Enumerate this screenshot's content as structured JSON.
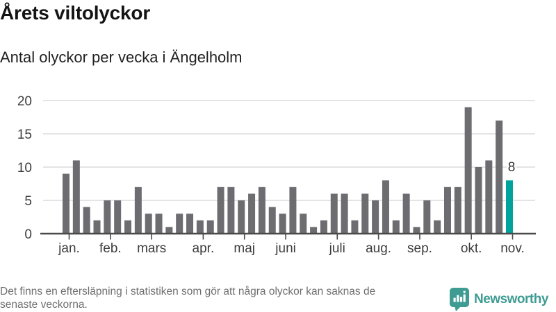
{
  "header": {
    "title": "Årets viltolyckor",
    "subtitle": "Antal olyckor per vecka i Ängelholm"
  },
  "chart_data": {
    "type": "bar",
    "title": "Årets viltolyckor",
    "subtitle": "Antal olyckor per vecka i Ängelholm",
    "x_unit": "vecka",
    "ylim": [
      0,
      20
    ],
    "yticks": [
      0,
      5,
      10,
      15,
      20
    ],
    "grid": true,
    "values": [
      9,
      11,
      4,
      2,
      5,
      5,
      2,
      7,
      3,
      3,
      1,
      3,
      3,
      2,
      2,
      7,
      7,
      5,
      6,
      7,
      4,
      3,
      7,
      3,
      1,
      2,
      6,
      6,
      2,
      6,
      5,
      8,
      2,
      6,
      1,
      5,
      2,
      7,
      7,
      19,
      10,
      11,
      17,
      8
    ],
    "months": [
      {
        "label": "jan.",
        "start_index": 0
      },
      {
        "label": "feb.",
        "start_index": 4
      },
      {
        "label": "mars",
        "start_index": 8
      },
      {
        "label": "apr.",
        "start_index": 13
      },
      {
        "label": "maj",
        "start_index": 17
      },
      {
        "label": "juni",
        "start_index": 21
      },
      {
        "label": "juli",
        "start_index": 26
      },
      {
        "label": "aug.",
        "start_index": 30
      },
      {
        "label": "sep.",
        "start_index": 34
      },
      {
        "label": "okt.",
        "start_index": 39
      },
      {
        "label": "nov.",
        "start_index": 43
      }
    ],
    "highlight": {
      "index": 43,
      "value": 8,
      "label": "8"
    },
    "colors": {
      "bar": "#6c6c71",
      "highlight": "#00a39c",
      "grid": "#e4e4e6",
      "axis": "#4a4a4a",
      "tick_text": "#3d3d3d",
      "value_label": "#333333"
    }
  },
  "footer": {
    "note_lines": [
      "Det finns en eftersläpning i statistiken som gör att några olyckor kan saknas de",
      "senaste veckorna."
    ],
    "brand_name": "Newsworthy",
    "brand_color": "#3f9c93"
  }
}
